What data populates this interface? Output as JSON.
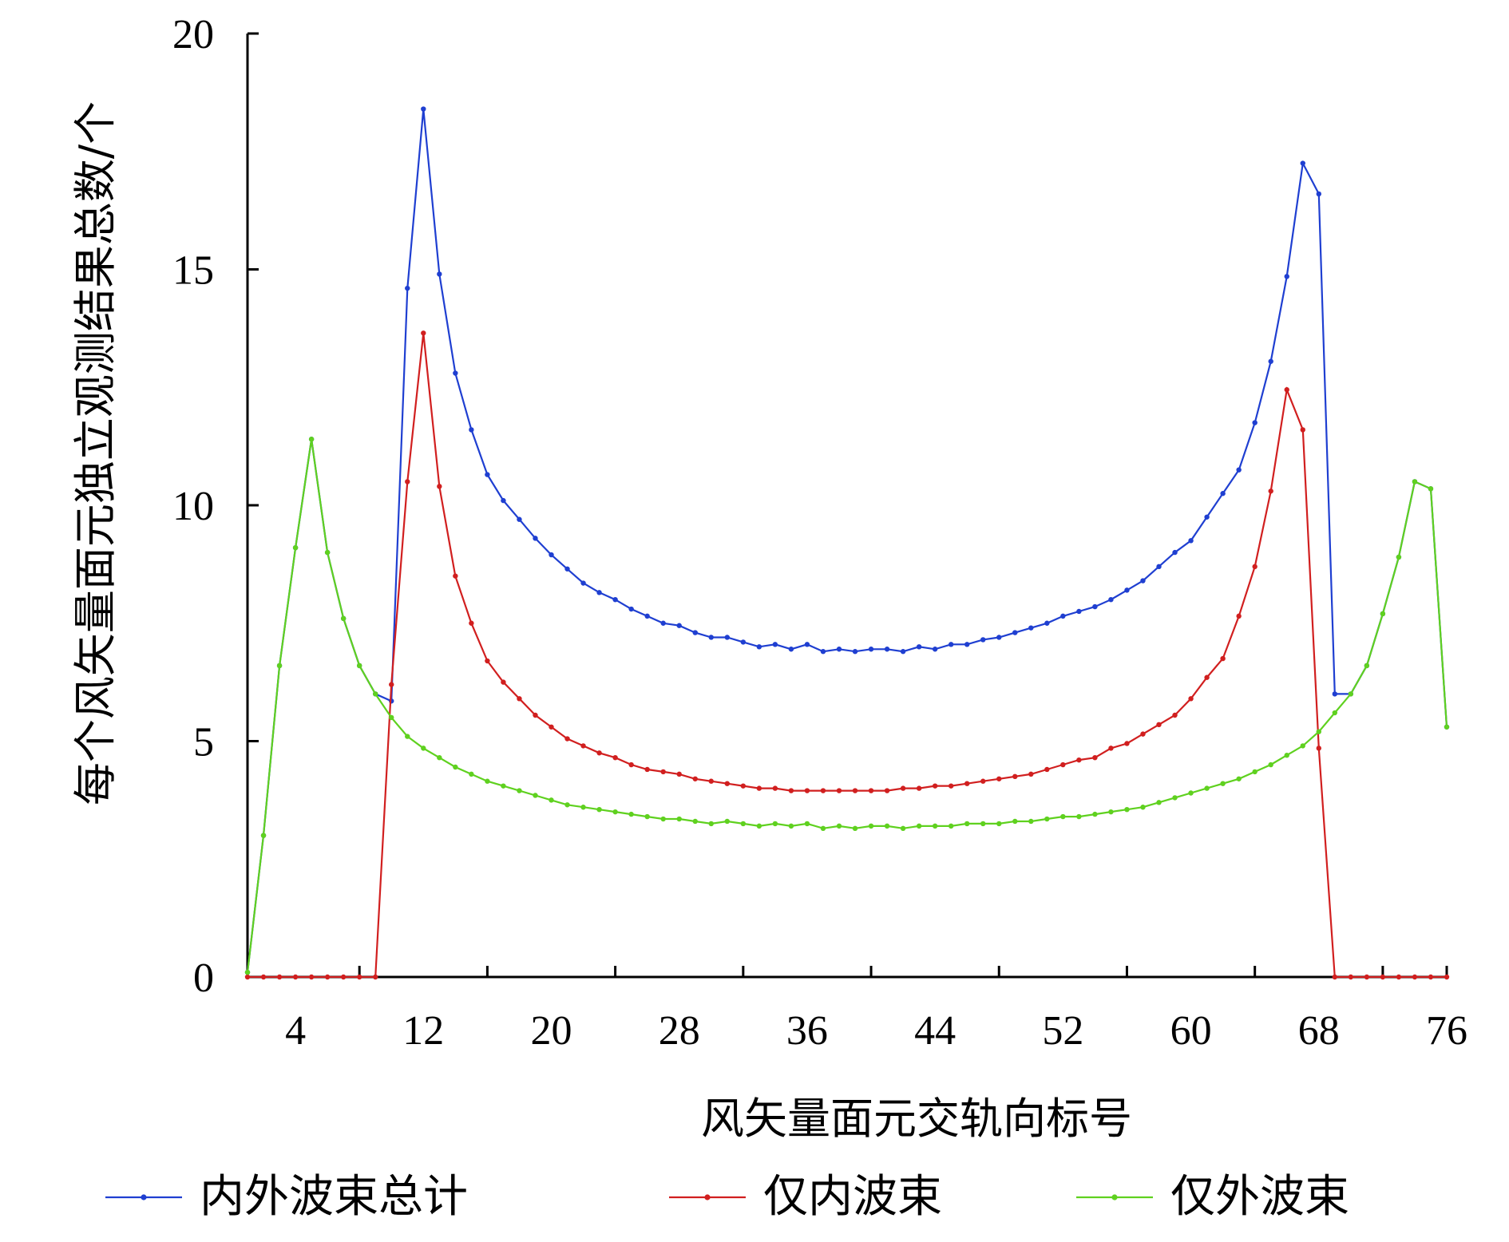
{
  "chart_data": {
    "type": "line",
    "title": "",
    "xlabel": "风矢量面元交轨向标号",
    "ylabel": "每个风矢量面元独立观测结果总数/个",
    "xlim": [
      1,
      76
    ],
    "ylim": [
      0,
      20
    ],
    "x_ticks": [
      4,
      12,
      20,
      28,
      36,
      44,
      52,
      60,
      68,
      76
    ],
    "y_ticks": [
      0,
      5,
      10,
      15,
      20
    ],
    "grid": false,
    "legend_position": "bottom",
    "x": [
      1,
      2,
      3,
      4,
      5,
      6,
      7,
      8,
      9,
      10,
      11,
      12,
      13,
      14,
      15,
      16,
      17,
      18,
      19,
      20,
      21,
      22,
      23,
      24,
      25,
      26,
      27,
      28,
      29,
      30,
      31,
      32,
      33,
      34,
      35,
      36,
      37,
      38,
      39,
      40,
      41,
      42,
      43,
      44,
      45,
      46,
      47,
      48,
      49,
      50,
      51,
      52,
      53,
      54,
      55,
      56,
      57,
      58,
      59,
      60,
      61,
      62,
      63,
      64,
      65,
      66,
      67,
      68,
      69,
      70,
      71,
      72,
      73,
      74,
      75,
      76
    ],
    "series": [
      {
        "name": "内外波束总计",
        "color": "#1f3fd1",
        "values": [
          0.1,
          3.0,
          6.6,
          9.1,
          11.4,
          9.0,
          7.6,
          6.6,
          6.0,
          5.85,
          14.6,
          18.4,
          14.9,
          12.8,
          11.6,
          10.65,
          10.1,
          9.7,
          9.3,
          8.95,
          8.65,
          8.35,
          8.15,
          8.0,
          7.8,
          7.65,
          7.5,
          7.45,
          7.3,
          7.2,
          7.2,
          7.1,
          7.0,
          7.05,
          6.95,
          7.05,
          6.9,
          6.95,
          6.9,
          6.95,
          6.95,
          6.9,
          7.0,
          6.95,
          7.05,
          7.05,
          7.15,
          7.2,
          7.3,
          7.4,
          7.5,
          7.65,
          7.75,
          7.85,
          8.0,
          8.2,
          8.4,
          8.7,
          9.0,
          9.25,
          9.75,
          10.25,
          10.75,
          11.75,
          13.05,
          14.85,
          17.25,
          16.6,
          6.0,
          6.0,
          6.6,
          7.7,
          8.9,
          10.5,
          10.35,
          5.3
        ]
      },
      {
        "name": "仅内波束",
        "color": "#d11f1f",
        "values": [
          0,
          0,
          0,
          0,
          0,
          0,
          0,
          0,
          0,
          6.2,
          10.5,
          13.65,
          10.4,
          8.5,
          7.5,
          6.7,
          6.25,
          5.9,
          5.55,
          5.3,
          5.05,
          4.9,
          4.75,
          4.65,
          4.5,
          4.4,
          4.35,
          4.3,
          4.2,
          4.15,
          4.1,
          4.05,
          4.0,
          4.0,
          3.95,
          3.95,
          3.95,
          3.95,
          3.95,
          3.95,
          3.95,
          4.0,
          4.0,
          4.05,
          4.05,
          4.1,
          4.15,
          4.2,
          4.25,
          4.3,
          4.4,
          4.5,
          4.6,
          4.65,
          4.85,
          4.95,
          5.15,
          5.35,
          5.55,
          5.9,
          6.35,
          6.75,
          7.65,
          8.7,
          10.3,
          12.45,
          11.6,
          4.85,
          0,
          0,
          0,
          0,
          0,
          0,
          0,
          0
        ]
      },
      {
        "name": "仅外波束",
        "color": "#5fd11f",
        "values": [
          0.1,
          3.0,
          6.6,
          9.1,
          11.4,
          9.0,
          7.6,
          6.6,
          6.0,
          5.5,
          5.1,
          4.85,
          4.65,
          4.45,
          4.3,
          4.15,
          4.05,
          3.95,
          3.85,
          3.75,
          3.65,
          3.6,
          3.55,
          3.5,
          3.45,
          3.4,
          3.35,
          3.35,
          3.3,
          3.25,
          3.3,
          3.25,
          3.2,
          3.25,
          3.2,
          3.25,
          3.15,
          3.2,
          3.15,
          3.2,
          3.2,
          3.15,
          3.2,
          3.2,
          3.2,
          3.25,
          3.25,
          3.25,
          3.3,
          3.3,
          3.35,
          3.4,
          3.4,
          3.45,
          3.5,
          3.55,
          3.6,
          3.7,
          3.8,
          3.9,
          4.0,
          4.1,
          4.2,
          4.35,
          4.5,
          4.7,
          4.9,
          5.2,
          5.6,
          6.0,
          6.6,
          7.7,
          8.9,
          10.5,
          10.35,
          5.3
        ]
      }
    ]
  }
}
